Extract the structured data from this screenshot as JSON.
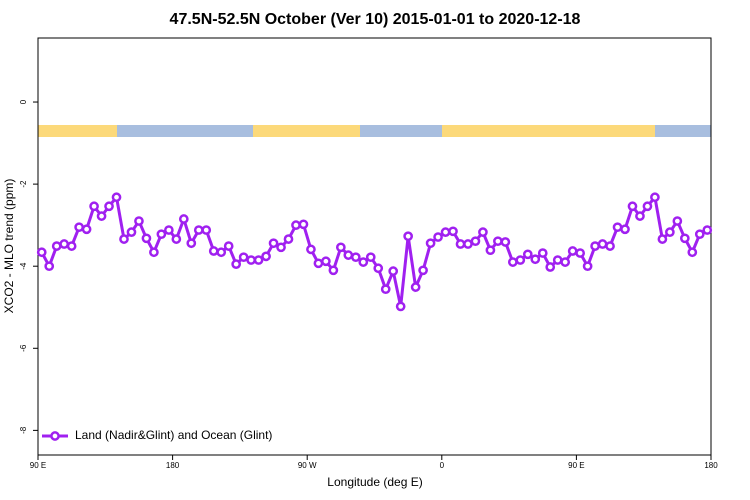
{
  "chart_data": {
    "type": "line",
    "title": "47.5N-52.5N October (Ver 10)   2015-01-01 to 2020-12-18",
    "x_label": "Longitude (deg E)",
    "y_label": "XCO2 - MLO trend (ppm)",
    "xlim": [
      90,
      540
    ],
    "ylim": [
      -8.6,
      1.56
    ],
    "xticks": [
      {
        "value": 90,
        "label": "90 E"
      },
      180,
      {
        "value": 270,
        "label": "90 W"
      },
      {
        "value": 360,
        "label": "0"
      },
      {
        "value": 450,
        "label": "90 E"
      },
      {
        "value": 540,
        "label": "180"
      }
    ],
    "yticks": [
      0,
      -2,
      -4,
      -6,
      -8
    ],
    "grid": false,
    "legend": "bottom-left",
    "x": [
      92.5,
      97.5,
      102.5,
      107.5,
      112.5,
      117.5,
      122.5,
      127.5,
      132.5,
      137.5,
      142.5,
      147.5,
      152.5,
      157.5,
      162.5,
      167.5,
      172.5,
      177.5,
      182.5,
      187.5,
      192.5,
      197.5,
      202.5,
      207.5,
      212.5,
      217.5,
      222.5,
      227.5,
      232.5,
      237.5,
      242.5,
      247.5,
      252.5,
      257.5,
      262.5,
      267.5,
      272.5,
      277.5,
      282.5,
      287.5,
      292.5,
      297.5,
      302.5,
      307.5,
      312.5,
      317.5,
      322.5,
      327.5,
      332.5,
      337.5,
      342.5,
      347.5,
      352.5,
      357.5,
      362.5,
      367.5,
      372.5,
      377.5,
      382.5,
      387.5,
      392.5,
      397.5,
      402.5,
      407.5,
      412.5,
      417.5,
      422.5,
      427.5,
      432.5,
      437.5,
      442.5,
      447.5,
      452.5,
      457.5,
      462.5,
      467.5,
      472.5,
      477.5,
      482.5,
      487.5,
      492.5,
      497.5,
      502.5,
      507.5,
      512.5,
      517.5,
      522.5,
      527.5,
      532.5,
      537.5
    ],
    "series": [
      {
        "name": "Land (Nadir&Glint) and Ocean (Glint)",
        "color": "#a020f0",
        "values": [
          -3.66,
          -4.0,
          -3.51,
          -3.46,
          -3.51,
          -3.05,
          -3.1,
          -2.54,
          -2.78,
          -2.54,
          -2.32,
          -3.34,
          -3.17,
          -2.9,
          -3.32,
          -3.66,
          -3.22,
          -3.12,
          -3.34,
          -2.85,
          -3.44,
          -3.12,
          -3.12,
          -3.63,
          -3.66,
          -3.51,
          -3.95,
          -3.78,
          -3.85,
          -3.85,
          -3.76,
          -3.44,
          -3.54,
          -3.34,
          -3.0,
          -2.98,
          -3.59,
          -3.93,
          -3.88,
          -4.1,
          -3.54,
          -3.73,
          -3.78,
          -3.9,
          -3.78,
          -4.05,
          -4.56,
          -4.12,
          -4.98,
          -3.27,
          -4.51,
          -4.1,
          -3.44,
          -3.29,
          -3.17,
          -3.15,
          -3.46,
          -3.46,
          -3.39,
          -3.17,
          -3.61,
          -3.39,
          -3.41,
          -3.9,
          -3.85,
          -3.71,
          -3.83,
          -3.68,
          -4.02,
          -3.85,
          -3.9,
          -3.63,
          -3.68,
          -4.0,
          -3.51,
          -3.46,
          -3.51,
          -3.05,
          -3.1,
          -2.54,
          -2.78,
          -2.54,
          -2.32,
          -3.34,
          -3.17,
          -2.9,
          -3.32,
          -3.66,
          -3.22,
          -3.12
        ]
      }
    ]
  }
}
